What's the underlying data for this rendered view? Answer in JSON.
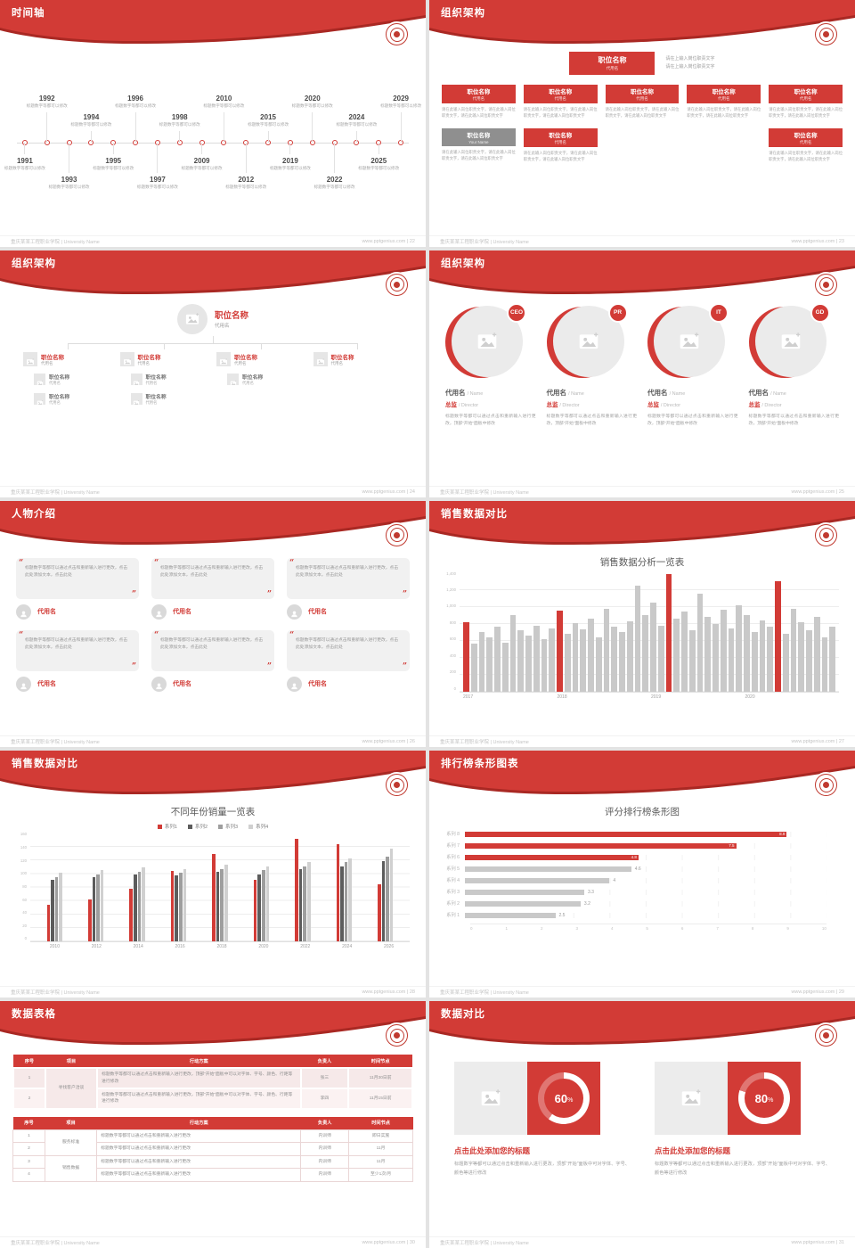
{
  "theme": {
    "red": "#d23b36",
    "dark_red": "#a92823",
    "bar_gray": "#c9c9c9",
    "text_gray": "#9a9a9a"
  },
  "footer": {
    "left": "重庆某某工程职业学院 | University Name",
    "site": "www.pptgenius.com",
    "sep": " | "
  },
  "slides": [
    {
      "page": "22",
      "title": "时间轴",
      "type": "timeline",
      "caption": "标题数字等都可以修改",
      "years_top": [
        "1992",
        "1994",
        "1996",
        "1998",
        "2010",
        "2015",
        "2020",
        "2024",
        "2029"
      ],
      "years_bottom": [
        "1991",
        "1993",
        "1995",
        "1997",
        "2009",
        "2012",
        "2019",
        "2022",
        "2025"
      ]
    },
    {
      "page": "23",
      "title": "组织架构",
      "type": "org-boxes",
      "head": {
        "title": "职位名称",
        "sub": "代用名",
        "desc": "请在上输入岗位职责文字\n请在上输入岗位职责文字"
      },
      "box_desc": "请在此输入岗位职责文字，请在此输入岗位职责文字，请在此输入岗位职责文字",
      "row1": [
        {
          "title": "职位名称",
          "sub": "代用名"
        },
        {
          "title": "职位名称",
          "sub": "代用名"
        },
        {
          "title": "职位名称",
          "sub": "代用名"
        },
        {
          "title": "职位名称",
          "sub": "代用名"
        },
        {
          "title": "职位名称",
          "sub": "代用名"
        }
      ],
      "row2": [
        {
          "title": "职位名称",
          "sub": "Your Name",
          "gray": true
        },
        {
          "title": "职位名称",
          "sub": "代用名"
        },
        null,
        null,
        {
          "title": "职位名称",
          "sub": "代用名"
        }
      ]
    },
    {
      "page": "24",
      "title": "组织架构",
      "type": "org-tree",
      "root": {
        "title": "职位名称",
        "sub": "代用名"
      },
      "children": [
        {
          "title": "职位名称",
          "sub": "代用名",
          "leaves": [
            {
              "title": "职位名称",
              "sub": "代用名"
            },
            {
              "title": "职位名称",
              "sub": "代用名"
            }
          ]
        },
        {
          "title": "职位名称",
          "sub": "代用名",
          "leaves": [
            {
              "title": "职位名称",
              "sub": "代用名"
            },
            {
              "title": "职位名称",
              "sub": "代用名"
            }
          ]
        },
        {
          "title": "职位名称",
          "sub": "代用名",
          "leaves": [
            {
              "title": "职位名称",
              "sub": "代用名"
            }
          ]
        },
        {
          "title": "职位名称",
          "sub": "代用名",
          "leaves": []
        }
      ]
    },
    {
      "page": "25",
      "title": "组织架构",
      "type": "org-circles",
      "desc": "标题数字等都可以通过点击和重新输入进行更改，顶部“开始”面板中修改",
      "members": [
        {
          "badge": "CEO",
          "name": "代用名",
          "name_suffix": "/ Name",
          "role": "总监",
          "role_suffix": "/ Director"
        },
        {
          "badge": "PR",
          "name": "代用名",
          "name_suffix": "/ Name",
          "role": "总监",
          "role_suffix": "/ Director"
        },
        {
          "badge": "IT",
          "name": "代用名",
          "name_suffix": "/ Name",
          "role": "总监",
          "role_suffix": "/ Director"
        },
        {
          "badge": "GD",
          "name": "代用名",
          "name_suffix": "/ Name",
          "role": "总监",
          "role_suffix": "/ Director"
        }
      ]
    },
    {
      "page": "26",
      "title": "人物介绍",
      "type": "people",
      "count": 6,
      "quote": "标题数字等都可以通过点击和重新输入进行更改，点击此处添加文本，点击此处",
      "name": "代用名"
    },
    {
      "page": "27",
      "title": "销售数据对比",
      "type": "chart-monthly",
      "chart_ref": 0
    },
    {
      "page": "28",
      "title": "销售数据对比",
      "type": "chart-grouped",
      "chart_ref": 1
    },
    {
      "page": "29",
      "title": "排行榜条形图表",
      "type": "chart-hbar",
      "chart_ref": 2
    },
    {
      "page": "30",
      "title": "数据表格",
      "type": "tables",
      "headers": [
        "序号",
        "项目",
        "行动方案",
        "负责人",
        "时间节点"
      ],
      "table1": {
        "action": "标题数字等都可以通过点击和重新输入进行更改，顶部“开始”面板中可以对字体、字号、颜色、行距等进行修改",
        "rows": [
          {
            "no": "1",
            "project": "寻找客户洽谈",
            "span": 2,
            "owner": "张三",
            "deadline": "11月30日前"
          },
          {
            "no": "2",
            "project": "",
            "owner": "李四",
            "deadline": "11月15日前"
          }
        ]
      },
      "table2": {
        "action": "标题数字等都可以通过点击和重新输入进行更改",
        "rows": [
          {
            "no": "1",
            "project": "服务标准",
            "span": 2,
            "owner": "内训师",
            "deadline": "即日实施"
          },
          {
            "no": "2",
            "project": "",
            "owner": "内训师",
            "deadline": "11月"
          },
          {
            "no": "3",
            "project": "销售数据",
            "span": 2,
            "owner": "内训师",
            "deadline": "11月"
          },
          {
            "no": "4",
            "project": "",
            "owner": "内训师",
            "deadline": "至少1次/月"
          }
        ]
      }
    },
    {
      "page": "31",
      "title": "数据对比",
      "type": "compare",
      "items": [
        {
          "percent": 60,
          "percent_label": "60",
          "percent_sign": "%",
          "title": "点击此处添加您的标题",
          "desc": "标题数字等都可以通过点击和重新输入进行更改，顶部“开始”面板中可对字体、字号、颜色等进行修改"
        },
        {
          "percent": 80,
          "percent_label": "80",
          "percent_sign": "%",
          "title": "点击此处添加您的标题",
          "desc": "标题数字等都可以通过点击和重新输入进行更改，顶部“开始”面板中可对字体、字号、颜色等进行修改"
        }
      ]
    }
  ],
  "chart_data": [
    {
      "type": "bar",
      "title": "销售数据分析一览表",
      "x_groups": [
        "2017",
        "2018",
        "2019",
        "2020"
      ],
      "y_ticks": [
        "1,400",
        "1,200",
        "1,000",
        "800",
        "600",
        "400",
        "200",
        "0"
      ],
      "ymax": 1400,
      "values": [
        820,
        560,
        700,
        640,
        760,
        580,
        900,
        720,
        660,
        780,
        620,
        740,
        950,
        680,
        810,
        730,
        860,
        640,
        980,
        760,
        700,
        830,
        1250,
        900,
        1050,
        780,
        1380,
        860,
        940,
        720,
        1150,
        880,
        800,
        960,
        740,
        1020,
        900,
        700,
        840,
        760,
        1300,
        680,
        980,
        820,
        720,
        880,
        640,
        760
      ],
      "red_indices": [
        0,
        12,
        26,
        40
      ],
      "bar_color": "#c9c9c9",
      "highlight_color": "#d23b36"
    },
    {
      "type": "bar",
      "title": "不同年份销量一览表",
      "categories": [
        "2010",
        "2012",
        "2014",
        "2016",
        "2018",
        "2020",
        "2022",
        "2024",
        "2026"
      ],
      "y_ticks": [
        "160",
        "140",
        "120",
        "100",
        "80",
        "60",
        "40",
        "20",
        "0"
      ],
      "ymax": 160,
      "series": [
        {
          "name": "系列1",
          "color": "#d23b36",
          "values": [
            55,
            62,
            78,
            105,
            130,
            92,
            152,
            145,
            85
          ]
        },
        {
          "name": "系列2",
          "color": "#5c5c5c",
          "values": [
            92,
            96,
            100,
            98,
            104,
            100,
            108,
            112,
            120
          ]
        },
        {
          "name": "系列3",
          "color": "#9e9e9e",
          "values": [
            96,
            100,
            104,
            102,
            108,
            106,
            112,
            118,
            126
          ]
        },
        {
          "name": "系列4",
          "color": "#d0d0d0",
          "values": [
            102,
            106,
            110,
            108,
            114,
            112,
            118,
            124,
            138
          ]
        }
      ]
    },
    {
      "type": "bar",
      "orientation": "horizontal",
      "title": "评分排行榜条形图",
      "categories": [
        "系列 8",
        "系列 7",
        "系列 6",
        "系列 5",
        "系列 4",
        "系列 3",
        "系列 2",
        "系列 1"
      ],
      "values": [
        8.9,
        7.5,
        4.8,
        4.6,
        4,
        3.3,
        3.2,
        2.5
      ],
      "value_labels": [
        "8.9",
        "7.5",
        "4.8",
        "4.6",
        "4",
        "3.3",
        "3.2",
        "2.5"
      ],
      "red_count": 3,
      "x_ticks": [
        "0",
        "1",
        "2",
        "3",
        "4",
        "5",
        "6",
        "7",
        "8",
        "9",
        "10"
      ],
      "xmax": 10,
      "bar_color": "#c9c9c9",
      "highlight_color": "#d23b36"
    },
    {
      "type": "donut",
      "title": "数据对比",
      "values": [
        60,
        80
      ],
      "labels": [
        "60%",
        "80%"
      ]
    }
  ]
}
